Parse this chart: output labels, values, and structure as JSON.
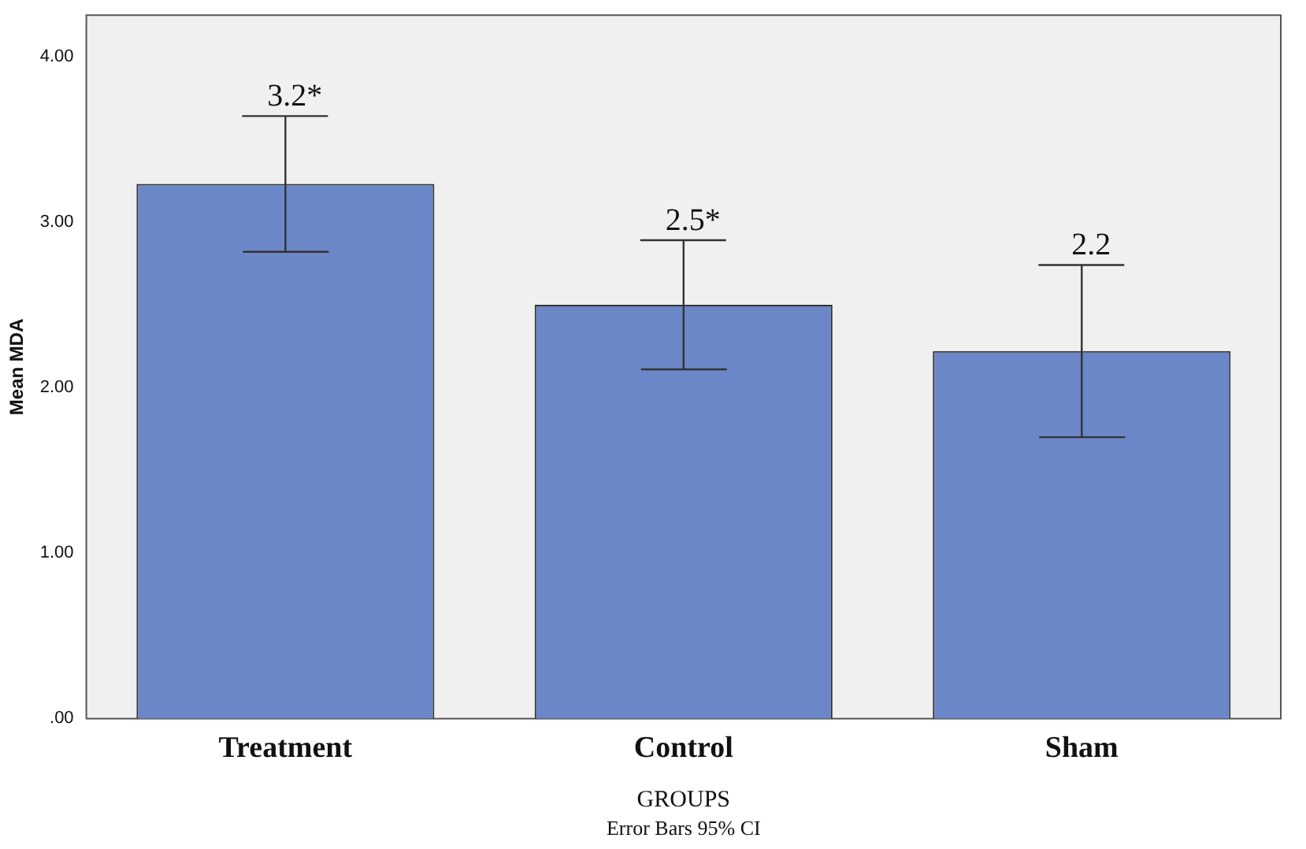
{
  "chart_data": {
    "type": "bar",
    "xlabel": "GROUPS",
    "ylabel": "Mean MDA",
    "categories": [
      "Treatment",
      "Control",
      "Sham"
    ],
    "values": [
      3.23,
      2.5,
      2.22
    ],
    "errors": [
      0.41,
      0.39,
      0.52
    ],
    "value_labels": [
      "3.2*",
      "2.5*",
      "2.2"
    ],
    "color": "#6b87c8",
    "ylim": [
      0,
      4.25
    ],
    "yticks": [
      {
        "value": 0,
        "label": ".00"
      },
      {
        "value": 1,
        "label": "1.00"
      },
      {
        "value": 2,
        "label": "2.00"
      },
      {
        "value": 3,
        "label": "3.00"
      },
      {
        "value": 4,
        "label": "4.00"
      }
    ],
    "grid": false,
    "legend": false,
    "annotations": [
      "Error Bars 95% CI"
    ]
  }
}
